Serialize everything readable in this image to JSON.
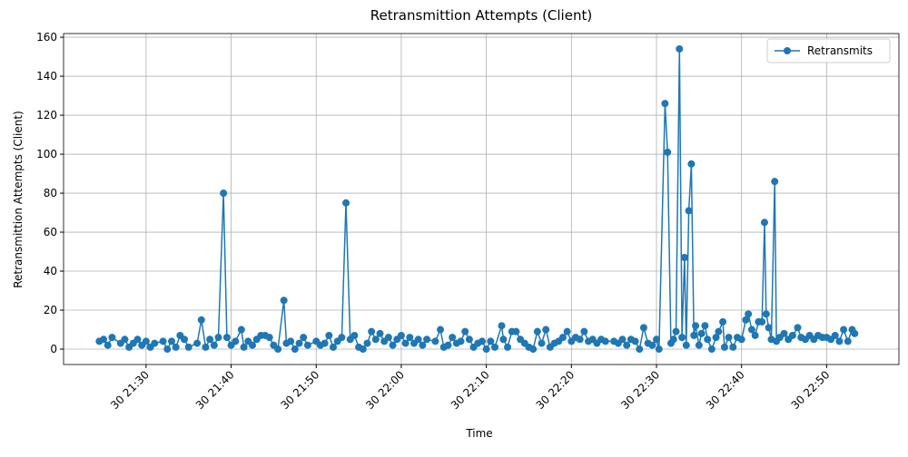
{
  "chart_data": {
    "type": "line",
    "title": "Retransmittion Attempts (Client)",
    "x_label": "Time",
    "y_label": "Retransmittion Attempts (Client)",
    "x": [
      1284.5,
      1285,
      1285.5,
      1286,
      1287,
      1287.5,
      1288,
      1288.5,
      1289,
      1289.5,
      1290,
      1290.5,
      1291,
      1292,
      1292.5,
      1293,
      1293.5,
      1294,
      1294.5,
      1295,
      1296,
      1296.5,
      1297,
      1297.5,
      1298,
      1298.5,
      1299.1,
      1299.5,
      1300,
      1300.5,
      1301.2,
      1301.5,
      1302,
      1302.5,
      1303,
      1303.5,
      1304,
      1304.5,
      1305,
      1305.5,
      1306.2,
      1306.5,
      1307,
      1307.5,
      1308,
      1308.5,
      1309,
      1310,
      1310.5,
      1311,
      1311.5,
      1312,
      1312.5,
      1313,
      1313.5,
      1314,
      1314.5,
      1315,
      1315.5,
      1316,
      1316.5,
      1317,
      1317.5,
      1318,
      1318.5,
      1319,
      1319.5,
      1320,
      1320.5,
      1321,
      1321.5,
      1322,
      1322.5,
      1323,
      1324,
      1324.6,
      1325,
      1325.5,
      1326,
      1326.5,
      1327,
      1327.5,
      1328,
      1328.5,
      1329,
      1329.5,
      1330,
      1330.5,
      1331,
      1331.8,
      1332,
      1332.5,
      1333,
      1333.5,
      1334,
      1334.5,
      1335,
      1335.5,
      1336,
      1336.5,
      1337,
      1337.5,
      1338,
      1338.5,
      1339,
      1339.5,
      1340,
      1340.5,
      1341,
      1341.5,
      1342,
      1342.5,
      1343,
      1343.5,
      1344,
      1345,
      1345.5,
      1346,
      1346.5,
      1347,
      1347.5,
      1348,
      1348.5,
      1349,
      1349.5,
      1350,
      1350.3,
      1351,
      1351.3,
      1351.7,
      1352,
      1352.3,
      1352.7,
      1353,
      1353.3,
      1353.5,
      1353.8,
      1354.1,
      1354.4,
      1354.6,
      1355,
      1355.3,
      1355.7,
      1356,
      1356.5,
      1357,
      1357.3,
      1357.8,
      1358,
      1358.5,
      1359,
      1359.5,
      1360,
      1360.5,
      1360.8,
      1361.2,
      1361.6,
      1362,
      1362.4,
      1362.7,
      1362.9,
      1363.2,
      1363.5,
      1363.9,
      1364.1,
      1364.5,
      1365,
      1365.5,
      1366,
      1366.6,
      1367,
      1367.5,
      1368,
      1368.5,
      1369,
      1369.5,
      1370,
      1370.5,
      1371,
      1371.5,
      1372,
      1372.5,
      1373,
      1373.3
    ],
    "series": [
      {
        "name": "Retransmits",
        "color": "#1f77b4",
        "values": [
          4,
          5,
          2,
          6,
          3,
          5,
          1,
          3,
          5,
          2,
          4,
          1,
          3,
          4,
          0,
          4,
          1,
          7,
          5,
          1,
          3,
          15,
          1,
          5,
          2,
          6,
          80,
          6,
          2,
          4,
          10,
          1,
          4,
          2,
          5,
          7,
          7,
          6,
          2,
          0,
          25,
          3,
          4,
          0,
          3,
          6,
          2,
          4,
          2,
          3,
          7,
          1,
          4,
          6,
          75,
          5,
          7,
          1,
          0,
          3,
          9,
          5,
          8,
          4,
          6,
          2,
          5,
          7,
          3,
          6,
          3,
          5,
          2,
          5,
          4,
          10,
          1,
          2,
          6,
          3,
          4,
          9,
          5,
          1,
          3,
          4,
          0,
          4,
          1,
          12,
          5,
          1,
          9,
          9,
          5,
          3,
          1,
          0,
          9,
          3,
          10,
          1,
          3,
          4,
          6,
          9,
          4,
          6,
          5,
          9,
          4,
          5,
          3,
          5,
          4,
          4,
          3,
          5,
          2,
          5,
          4,
          0,
          11,
          3,
          2,
          5,
          0,
          126,
          101,
          3,
          5,
          9,
          154,
          6,
          47,
          2,
          71,
          95,
          7,
          12,
          2,
          8,
          12,
          5,
          0,
          6,
          9,
          14,
          1,
          6,
          1,
          6,
          5,
          15,
          18,
          10,
          7,
          14,
          14,
          65,
          18,
          11,
          5,
          86,
          4,
          6,
          8,
          5,
          7,
          11,
          6,
          5,
          7,
          5,
          7,
          6,
          6,
          5,
          7,
          4,
          10,
          4,
          10,
          8
        ]
      }
    ],
    "xlim": [
      1280.3,
      1378.5
    ],
    "ylim": [
      -7.9,
      161.9
    ],
    "xticks": [
      {
        "value": 1290,
        "label": "30 21:30"
      },
      {
        "value": 1300,
        "label": "30 21:40"
      },
      {
        "value": 1310,
        "label": "30 21:50"
      },
      {
        "value": 1320,
        "label": "30 22:00"
      },
      {
        "value": 1330,
        "label": "30 22:10"
      },
      {
        "value": 1340,
        "label": "30 22:20"
      },
      {
        "value": 1350,
        "label": "30 22:30"
      },
      {
        "value": 1360,
        "label": "30 22:40"
      },
      {
        "value": 1370,
        "label": "30 22:50"
      }
    ],
    "yticks": [
      0,
      20,
      40,
      60,
      80,
      100,
      120,
      140,
      160
    ],
    "grid": true,
    "legend": "upper right"
  }
}
